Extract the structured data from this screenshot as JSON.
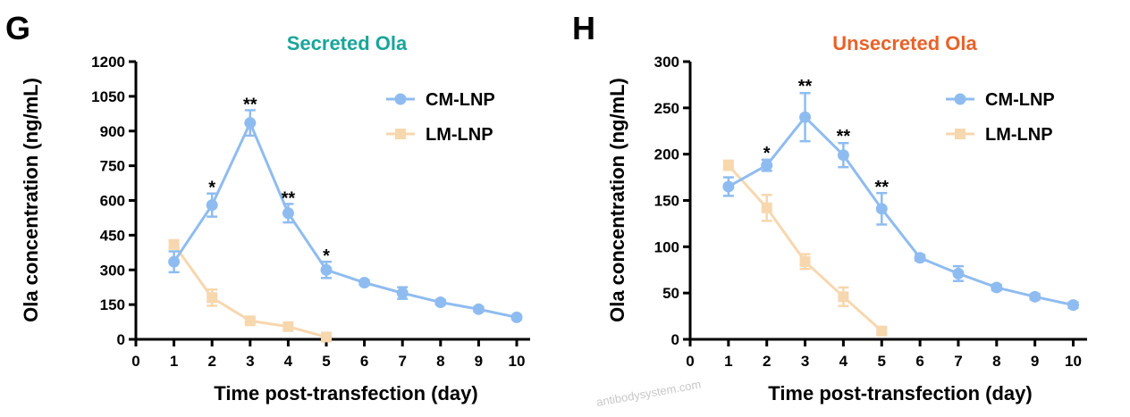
{
  "watermark": "antibodysystem.com",
  "chart_data": [
    {
      "type": "line",
      "panel_letter": "G",
      "title": "Secreted Ola",
      "title_color": "#1aa59a",
      "xlabel": "Time post-transfection (day)",
      "ylabel": "Ola concentration (ng/mL)",
      "xlim": [
        0,
        10
      ],
      "ylim": [
        0,
        1200
      ],
      "x_ticks": [
        "0",
        "1",
        "2",
        "3",
        "4",
        "5",
        "6",
        "7",
        "8",
        "9",
        "10"
      ],
      "y_ticks": [
        "0",
        "150",
        "300",
        "450",
        "600",
        "750",
        "900",
        "1050",
        "1200"
      ],
      "grid": false,
      "legend_position": "top-right",
      "series": [
        {
          "name": "CM-LNP",
          "color": "#8fbcf0",
          "marker": "circle",
          "x": [
            1,
            2,
            3,
            4,
            5,
            6,
            7,
            8,
            9,
            10
          ],
          "y": [
            335,
            580,
            935,
            545,
            300,
            245,
            200,
            160,
            130,
            95
          ],
          "err": [
            45,
            50,
            55,
            40,
            35,
            10,
            25,
            10,
            10,
            8
          ]
        },
        {
          "name": "LM-LNP",
          "color": "#f7d7ae",
          "marker": "square",
          "x": [
            1,
            2,
            3,
            4,
            5
          ],
          "y": [
            410,
            180,
            80,
            55,
            10
          ],
          "err": [
            15,
            35,
            10,
            12,
            5
          ]
        }
      ],
      "annotations": [
        {
          "x": 2,
          "text": "*",
          "y": 630
        },
        {
          "x": 3,
          "text": "**",
          "y": 990
        },
        {
          "x": 4,
          "text": "**",
          "y": 585
        },
        {
          "x": 5,
          "text": "*",
          "y": 335
        }
      ]
    },
    {
      "type": "line",
      "panel_letter": "H",
      "title": "Unsecreted Ola",
      "title_color": "#e8622a",
      "xlabel": "Time post-transfection (day)",
      "ylabel": "Ola concentration (ng/mL)",
      "xlim": [
        0,
        10
      ],
      "ylim": [
        0,
        300
      ],
      "x_ticks": [
        "0",
        "1",
        "2",
        "3",
        "4",
        "5",
        "6",
        "7",
        "8",
        "9",
        "10"
      ],
      "y_ticks": [
        "0",
        "50",
        "100",
        "150",
        "200",
        "250",
        "300"
      ],
      "grid": false,
      "legend_position": "top-right",
      "series": [
        {
          "name": "CM-LNP",
          "color": "#8fbcf0",
          "marker": "circle",
          "x": [
            1,
            2,
            3,
            4,
            5,
            6,
            7,
            8,
            9,
            10
          ],
          "y": [
            165,
            188,
            240,
            199,
            141,
            88,
            71,
            56,
            46,
            37
          ],
          "err": [
            10,
            6,
            26,
            13,
            17,
            3,
            8,
            3,
            3,
            3
          ]
        },
        {
          "name": "LM-LNP",
          "color": "#f7d7ae",
          "marker": "square",
          "x": [
            1,
            2,
            3,
            4,
            5
          ],
          "y": [
            188,
            142,
            84,
            46,
            9
          ],
          "err": [
            5,
            14,
            8,
            10,
            3
          ]
        }
      ],
      "annotations": [
        {
          "x": 2,
          "text": "*",
          "y": 195
        },
        {
          "x": 3,
          "text": "**",
          "y": 267
        },
        {
          "x": 4,
          "text": "**",
          "y": 213
        },
        {
          "x": 5,
          "text": "**",
          "y": 158
        }
      ]
    }
  ]
}
